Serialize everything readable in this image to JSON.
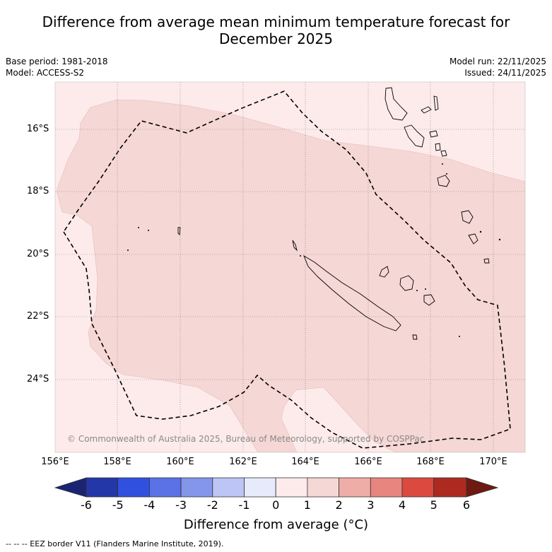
{
  "title": {
    "line1": "Difference from average mean minimum temperature forecast for",
    "line2": "December 2025"
  },
  "meta": {
    "base_period": "Base period: 1981-2018",
    "model": "Model: ACCESS-S2",
    "model_run": "Model run: 22/11/2025",
    "issued": "Issued: 24/11/2025"
  },
  "map": {
    "copyright": "© Commonwealth of Australia 2025, Bureau of Meteorology, supported by COSPPac",
    "lon_ticks": [
      "156°E",
      "158°E",
      "160°E",
      "162°E",
      "164°E",
      "166°E",
      "168°E",
      "170°E"
    ],
    "lat_ticks": [
      "16°S",
      "18°S",
      "20°S",
      "22°S",
      "24°S"
    ],
    "colors": {
      "anomaly_0_1": "#fcebea",
      "anomaly_1_2": "#f5d7d5",
      "eez_border": "#000000"
    }
  },
  "colorbar": {
    "title": "Difference from average (°C)",
    "ticks": [
      "-6",
      "-5",
      "-4",
      "-3",
      "-2",
      "-1",
      "0",
      "1",
      "2",
      "3",
      "4",
      "5",
      "6"
    ],
    "colors": [
      "#1a2472",
      "#2437a8",
      "#3050e0",
      "#5a72e6",
      "#8496ea",
      "#bcc5f5",
      "#e6eafb",
      "#fcebea",
      "#f5d7d5",
      "#efada7",
      "#e8857e",
      "#db4a3e",
      "#ad2a20",
      "#6e1912"
    ]
  },
  "footnote": "-- -- -- EEZ border V11 (Flanders Marine Institute, 2019)."
}
